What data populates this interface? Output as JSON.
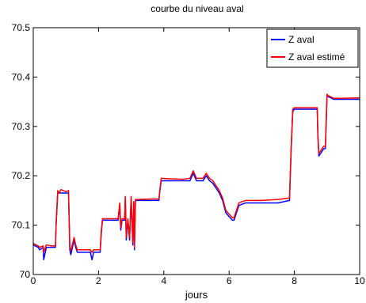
{
  "chart_data": {
    "type": "line",
    "title": "courbe du niveau aval",
    "xlabel": "jours",
    "ylabel": "",
    "xlim": [
      0,
      10
    ],
    "ylim": [
      70,
      70.5
    ],
    "x_ticks": [
      "0",
      "2",
      "4",
      "6",
      "8",
      "10"
    ],
    "y_ticks": [
      "70",
      "70.1",
      "70.2",
      "70.3",
      "70.4",
      "70.5"
    ],
    "grid": false,
    "legend_position": "top-right",
    "series": [
      {
        "name": "Z aval",
        "color": "#0000ff",
        "x": [
          0,
          0.15,
          0.2,
          0.3,
          0.32,
          0.4,
          0.55,
          0.68,
          0.7,
          0.75,
          0.78,
          0.85,
          1.0,
          1.08,
          1.12,
          1.15,
          1.25,
          1.3,
          1.35,
          1.5,
          1.75,
          1.8,
          1.85,
          2.0,
          2.05,
          2.08,
          2.12,
          2.3,
          2.6,
          2.65,
          2.68,
          2.72,
          2.8,
          2.82,
          2.85,
          2.9,
          2.95,
          3.0,
          3.05,
          3.08,
          3.1,
          3.13,
          3.2,
          3.6,
          3.85,
          3.88,
          3.92,
          4.2,
          4.6,
          4.8,
          4.9,
          5.0,
          5.2,
          5.3,
          5.4,
          5.5,
          5.7,
          5.8,
          5.9,
          6.1,
          6.15,
          6.3,
          6.5,
          7.0,
          7.5,
          7.85,
          7.9,
          7.95,
          8.0,
          8.3,
          8.7,
          8.72,
          8.75,
          8.9,
          8.95,
          9.0,
          9.05,
          9.2,
          9.5,
          10.0
        ],
        "y": [
          70.06,
          70.055,
          70.05,
          70.055,
          70.03,
          70.055,
          70.055,
          70.055,
          70.1,
          70.165,
          70.165,
          70.165,
          70.165,
          70.165,
          70.05,
          70.04,
          70.07,
          70.055,
          70.045,
          70.045,
          70.045,
          70.03,
          70.045,
          70.045,
          70.045,
          70.08,
          70.11,
          70.11,
          70.11,
          70.14,
          70.09,
          70.11,
          70.11,
          70.155,
          70.07,
          70.11,
          70.07,
          70.155,
          70.06,
          70.145,
          70.05,
          70.15,
          70.15,
          70.15,
          70.15,
          70.17,
          70.19,
          70.19,
          70.19,
          70.19,
          70.205,
          70.19,
          70.19,
          70.2,
          70.19,
          70.185,
          70.165,
          70.15,
          70.125,
          70.11,
          70.11,
          70.14,
          70.145,
          70.145,
          70.145,
          70.15,
          70.25,
          70.33,
          70.335,
          70.335,
          70.335,
          70.28,
          70.24,
          70.255,
          70.255,
          70.36,
          70.36,
          70.355,
          70.355,
          70.355
        ]
      },
      {
        "name": "Z aval estimé",
        "color": "#ff0000",
        "x": [
          0,
          0.15,
          0.2,
          0.3,
          0.32,
          0.4,
          0.55,
          0.68,
          0.7,
          0.75,
          0.78,
          0.85,
          1.0,
          1.08,
          1.12,
          1.15,
          1.25,
          1.3,
          1.35,
          1.5,
          1.75,
          1.8,
          1.85,
          2.0,
          2.05,
          2.08,
          2.12,
          2.3,
          2.6,
          2.65,
          2.68,
          2.72,
          2.8,
          2.82,
          2.85,
          2.9,
          2.95,
          3.0,
          3.05,
          3.08,
          3.1,
          3.13,
          3.2,
          3.6,
          3.85,
          3.88,
          3.92,
          4.2,
          4.6,
          4.8,
          4.9,
          5.0,
          5.2,
          5.3,
          5.4,
          5.5,
          5.7,
          5.8,
          5.9,
          6.1,
          6.15,
          6.3,
          6.5,
          7.0,
          7.5,
          7.85,
          7.9,
          7.95,
          8.0,
          8.3,
          8.7,
          8.72,
          8.75,
          8.9,
          8.95,
          9.0,
          9.05,
          9.2,
          9.5,
          10.0
        ],
        "y": [
          70.063,
          70.058,
          70.055,
          70.058,
          70.045,
          70.06,
          70.058,
          70.058,
          70.105,
          70.17,
          70.165,
          70.172,
          70.168,
          70.17,
          70.055,
          70.048,
          70.075,
          70.06,
          70.05,
          70.05,
          70.05,
          70.045,
          70.05,
          70.05,
          70.05,
          70.085,
          70.113,
          70.113,
          70.113,
          70.145,
          70.095,
          70.113,
          70.113,
          70.158,
          70.075,
          70.113,
          70.075,
          70.158,
          70.065,
          70.148,
          70.055,
          70.152,
          70.152,
          70.153,
          70.153,
          70.173,
          70.195,
          70.194,
          70.193,
          70.195,
          70.21,
          70.195,
          70.195,
          70.205,
          70.195,
          70.19,
          70.17,
          70.155,
          70.13,
          70.115,
          70.115,
          70.145,
          70.15,
          70.15,
          70.152,
          70.155,
          70.255,
          70.335,
          70.338,
          70.338,
          70.338,
          70.285,
          70.245,
          70.26,
          70.26,
          70.365,
          70.362,
          70.357,
          70.357,
          70.358
        ]
      }
    ]
  }
}
